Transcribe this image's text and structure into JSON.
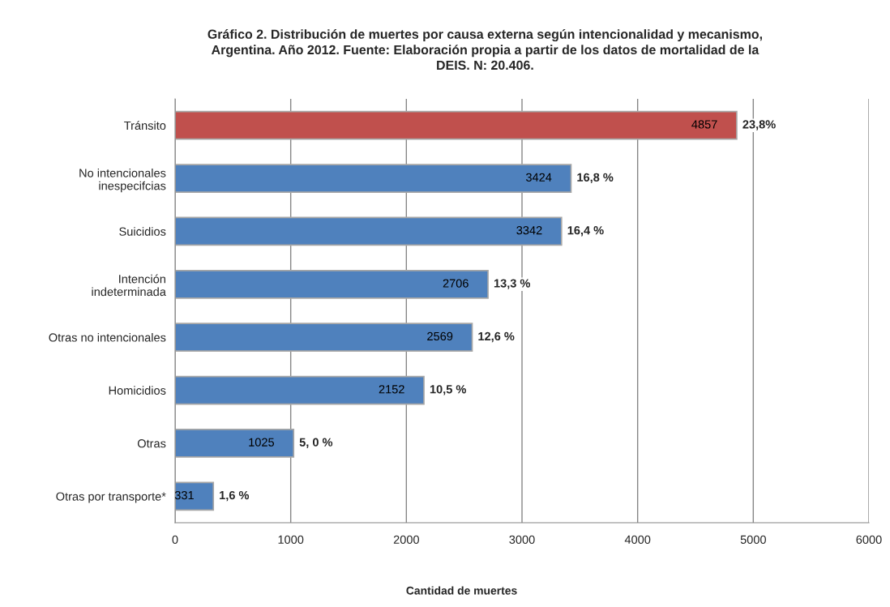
{
  "chart_data": {
    "type": "bar",
    "orientation": "horizontal",
    "title": "Gráfico 2. Distribución de muertes por causa externa según intencionalidad y mecanismo,\nArgentina. Año 2012. Fuente: Elaboración propia a partir de los datos de mortalidad de la\nDEIS. N: 20.406.",
    "xlabel": "Cantidad de muertes",
    "categories": [
      "Tránsito",
      "No intencionales\ninespecifcias",
      "Suicidios",
      "Intención\nindeterminada",
      "Otras no intencionales",
      "Homicidios",
      "Otras",
      "Otras por transporte*"
    ],
    "values": [
      4857,
      3424,
      3342,
      2706,
      2569,
      2152,
      1025,
      331
    ],
    "colors": [
      "#c0504d",
      "#4f81bd",
      "#4f81bd",
      "#4f81bd",
      "#4f81bd",
      "#4f81bd",
      "#4f81bd",
      "#4f81bd"
    ],
    "xlim": [
      0,
      6000
    ],
    "xticks": [
      0,
      1000,
      2000,
      3000,
      4000,
      5000,
      6000
    ],
    "grid": "x",
    "data_labels": true,
    "annotations": [
      {
        "text": "23,8%",
        "x": 4857,
        "y": "Tránsito"
      },
      {
        "text": "16,8 %",
        "x": 3424,
        "y": "No intencionales\ninespecifcias"
      },
      {
        "text": "16,4 %",
        "x": 3342,
        "y": "Suicidios"
      },
      {
        "text": "13,3 %",
        "x": 2706,
        "y": "Intención\nindeterminada"
      },
      {
        "text": "12,6 %",
        "x": 2569,
        "y": "Otras no intencionales"
      },
      {
        "text": "10,5 %",
        "x": 2152,
        "y": "Homicidios"
      },
      {
        "text": "5, 0 %",
        "x": 1025,
        "y": "Otras"
      },
      {
        "text": "1,6 %",
        "x": 331,
        "y": "Otras por transporte*"
      }
    ]
  }
}
